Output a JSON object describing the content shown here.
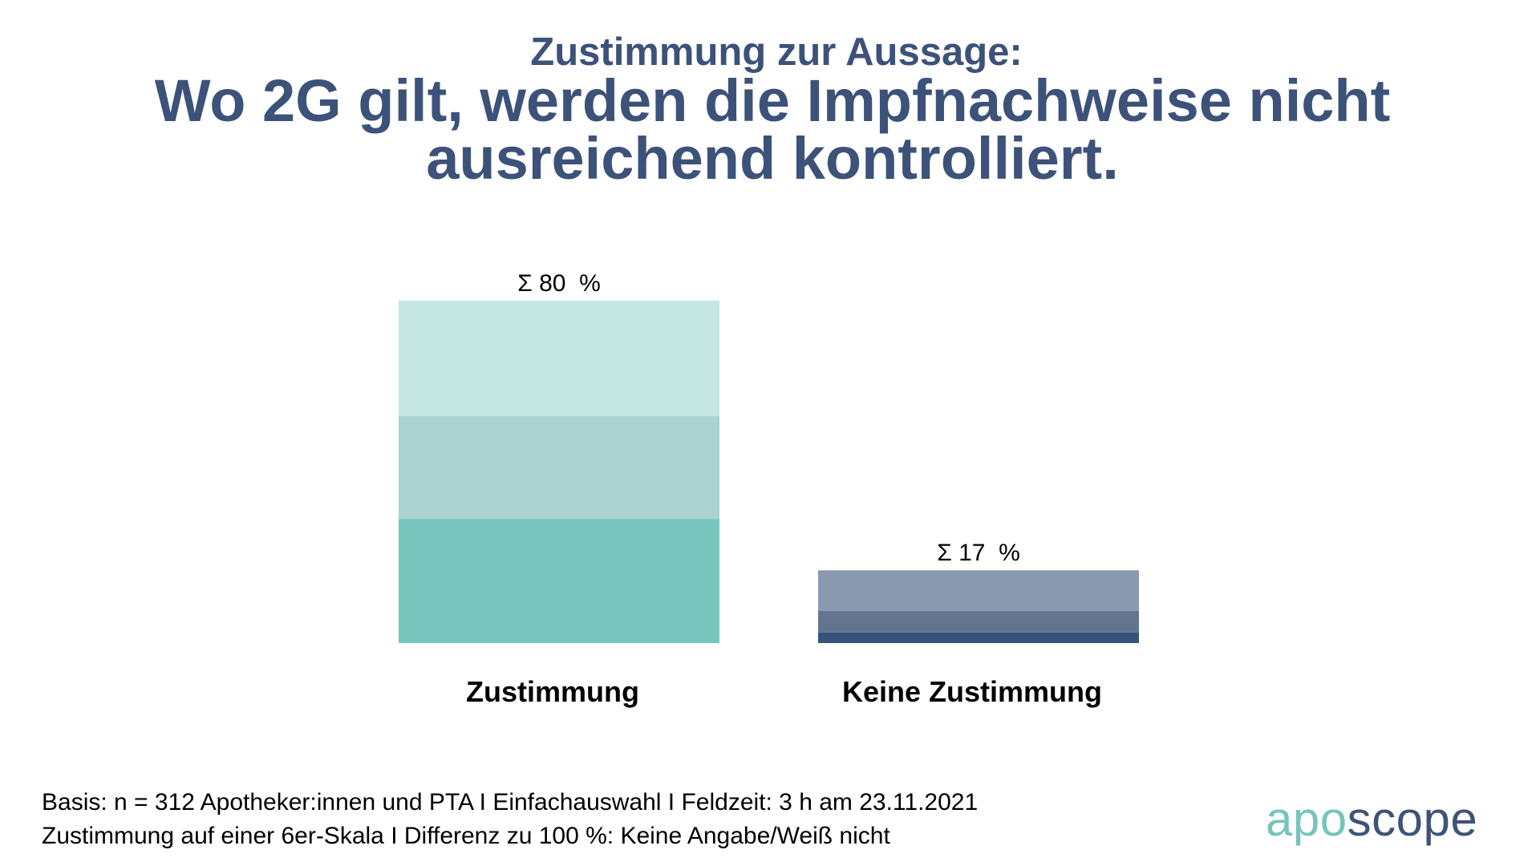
{
  "header": {
    "subtitle": "Zustimmung zur Aussage:",
    "title_line1": "Wo 2G gilt, werden die Impfnachweise nicht",
    "title_line2": "ausreichend kontrolliert."
  },
  "colors": {
    "title": "#3D5279",
    "text": "#000000"
  },
  "chart_data": {
    "type": "bar",
    "stacked": true,
    "title": "Wo 2G gilt, werden die Impfnachweise nicht ausreichend kontrolliert.",
    "subtitle": "Zustimmung zur Aussage:",
    "xlabel": "",
    "ylabel": "",
    "unit": "%",
    "ylim": [
      0,
      80
    ],
    "grid": false,
    "legend": "none",
    "categories": [
      "Zustimmung",
      "Keine Zustimmung"
    ],
    "totals": [
      80,
      17
    ],
    "total_labels": [
      "Σ 80  %",
      "Σ 17  %"
    ],
    "bars": [
      {
        "category": "Zustimmung",
        "segments": [
          {
            "value": 29,
            "color": "#77C5BC"
          },
          {
            "value": 24,
            "color": "#AAD3D1"
          },
          {
            "value": 27,
            "color": "#C4E7E3"
          }
        ]
      },
      {
        "category": "Keine Zustimmung",
        "segments": [
          {
            "value": 2.5,
            "color": "#36527A"
          },
          {
            "value": 5,
            "color": "#64748F"
          },
          {
            "value": 9.5,
            "color": "#8A99B0"
          }
        ]
      }
    ]
  },
  "footer": {
    "line1": "Basis: n = 312 Apotheker:innen und PTA I Einfachauswahl I Feldzeit: 3 h am 23.11.2021",
    "line2": "Zustimmung auf einer 6er-Skala I Differenz zu 100 %: Keine Angabe/Weiß nicht"
  },
  "logo": {
    "part1": "apo",
    "part2": "scope"
  }
}
